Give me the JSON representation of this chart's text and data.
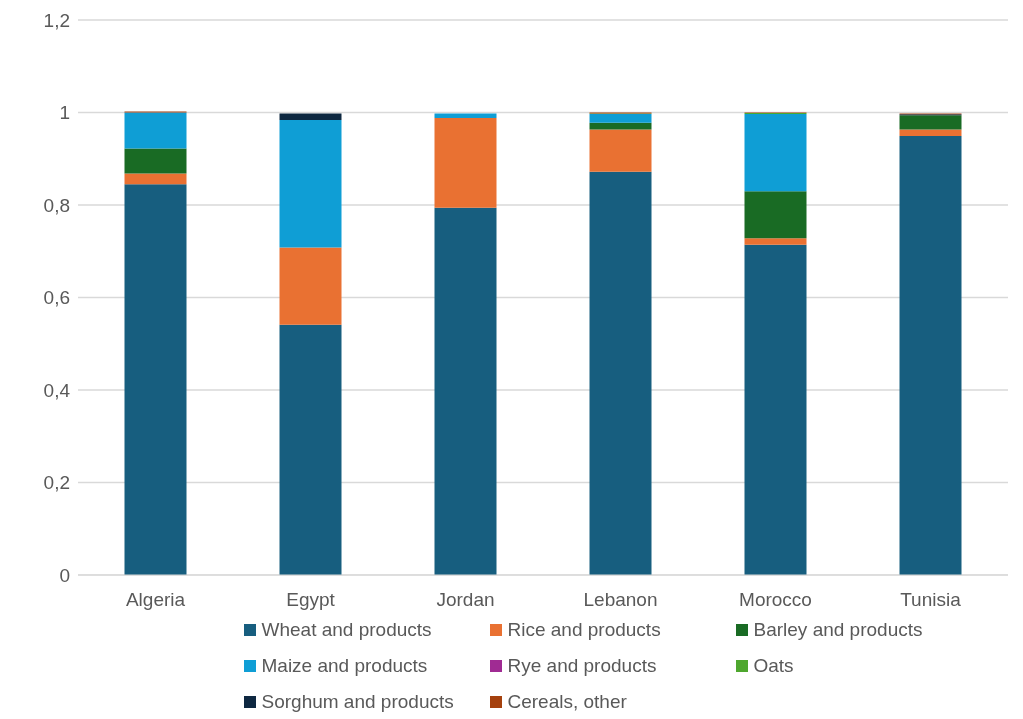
{
  "chart_data": {
    "type": "bar",
    "stacked": true,
    "categories": [
      "Algeria",
      "Egypt",
      "Jordan",
      "Lebanon",
      "Morocco",
      "Tunisia"
    ],
    "series": [
      {
        "name": "Wheat and products",
        "color": "#175e7f",
        "values": [
          0.845,
          0.541,
          0.794,
          0.872,
          0.714,
          0.949
        ]
      },
      {
        "name": "Rice and products",
        "color": "#e97132",
        "values": [
          0.023,
          0.167,
          0.194,
          0.091,
          0.014,
          0.014
        ]
      },
      {
        "name": "Barley and products",
        "color": "#196b24",
        "values": [
          0.054,
          0,
          0,
          0.015,
          0.102,
          0.031
        ]
      },
      {
        "name": "Maize and products",
        "color": "#0f9ed5",
        "values": [
          0.078,
          0.276,
          0.01,
          0.019,
          0.167,
          0
        ]
      },
      {
        "name": "Rye and products",
        "color": "#a02b93",
        "values": [
          0,
          0,
          0,
          0,
          0,
          0
        ]
      },
      {
        "name": "Oats",
        "color": "#4ea72e",
        "values": [
          0,
          0,
          0,
          0.001,
          0.002,
          0
        ]
      },
      {
        "name": "Sorghum and products",
        "color": "#0e2841",
        "values": [
          0,
          0.014,
          0,
          0,
          0,
          0.002
        ]
      },
      {
        "name": "Cereals, other",
        "color": "#a5410e",
        "values": [
          0.002,
          null,
          null,
          0.002,
          0.001,
          0.002
        ]
      }
    ],
    "ylim": [
      0,
      1.2
    ],
    "yticks": [
      {
        "value": 0,
        "label": "0"
      },
      {
        "value": 0.2,
        "label": "0,2"
      },
      {
        "value": 0.4,
        "label": "0,4"
      },
      {
        "value": 0.6,
        "label": "0,6"
      },
      {
        "value": 0.8,
        "label": "0,8"
      },
      {
        "value": 1,
        "label": "1"
      },
      {
        "value": 1.2,
        "label": "1,2"
      }
    ],
    "grid": "y",
    "legend": "bottom"
  }
}
